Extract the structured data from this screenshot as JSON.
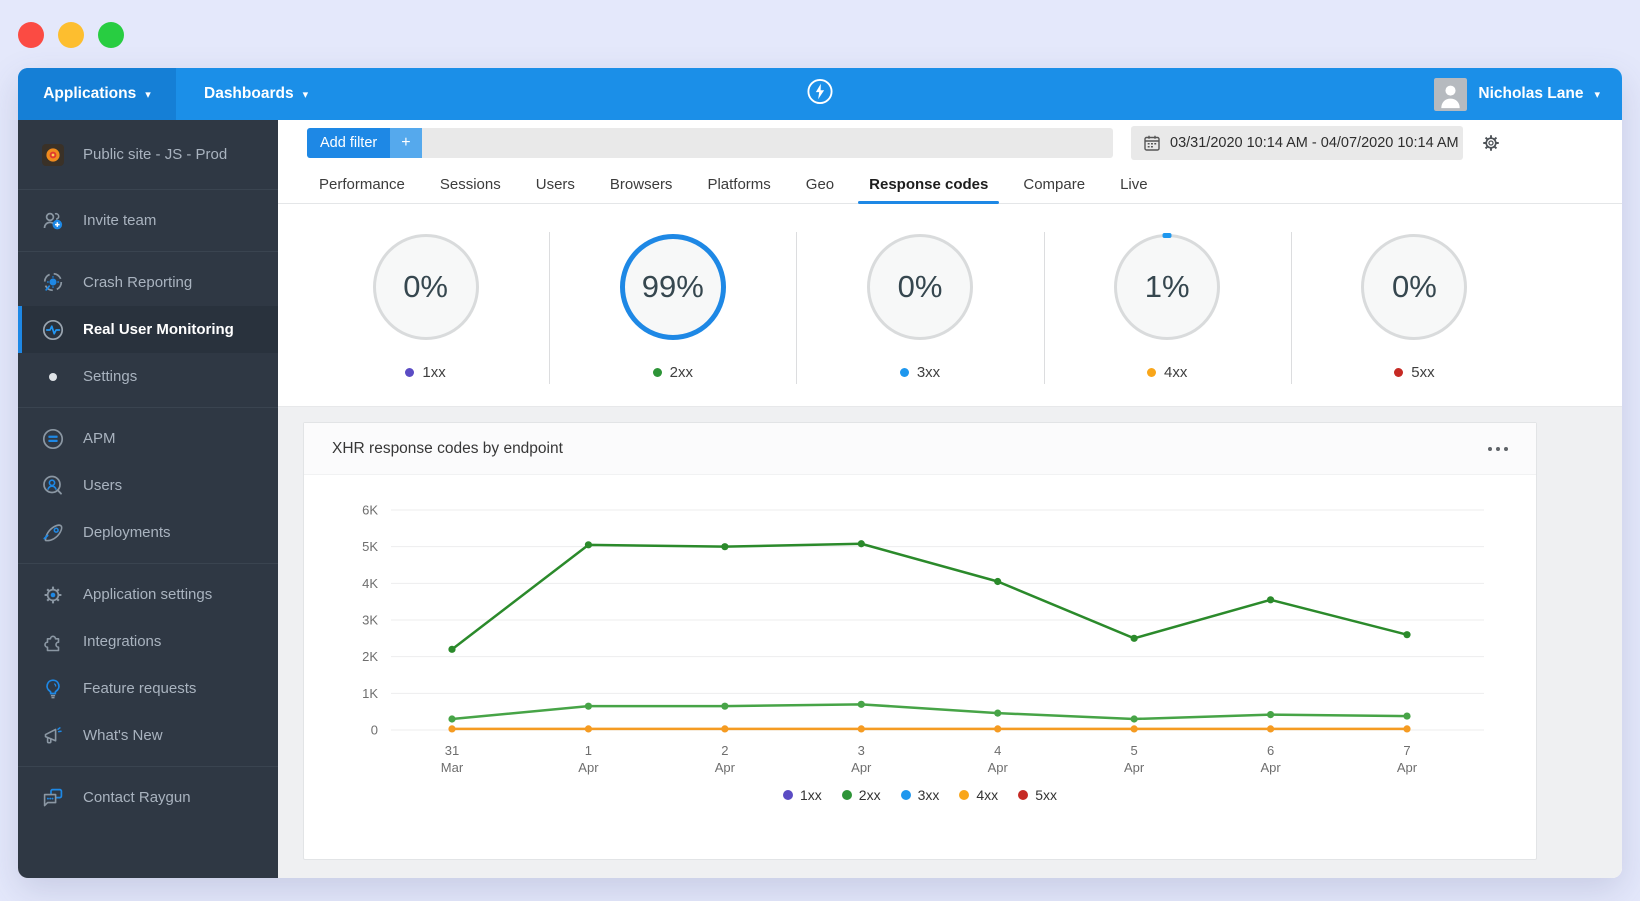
{
  "colors": {
    "accent": "#1e88e5",
    "topbar": "#1b8fe8",
    "topbar_dark": "#157fd6",
    "sidebar_bg": "#2f3844",
    "content_bg": "#eff0f2",
    "traffic_close": "#fb4b43",
    "traffic_minimize": "#fdbe2f",
    "traffic_zoom": "#28cd41"
  },
  "topbar": {
    "applications": "Applications",
    "dashboards": "Dashboards",
    "user": "Nicholas Lane"
  },
  "sidebar": {
    "app_name": "Public site - JS - Prod",
    "invite": "Invite team",
    "crash": "Crash Reporting",
    "rum": "Real User Monitoring",
    "settings": "Settings",
    "apm": "APM",
    "users": "Users",
    "deployments": "Deployments",
    "app_settings": "Application settings",
    "integrations": "Integrations",
    "feature_requests": "Feature requests",
    "whats_new": "What's New",
    "contact": "Contact Raygun"
  },
  "filterbar": {
    "add_filter": "Add filter",
    "plus": "+",
    "date_range": "03/31/2020 10:14 AM - 04/07/2020 10:14 AM"
  },
  "tabs": [
    {
      "label": "Performance",
      "active": false
    },
    {
      "label": "Sessions",
      "active": false
    },
    {
      "label": "Users",
      "active": false
    },
    {
      "label": "Browsers",
      "active": false
    },
    {
      "label": "Platforms",
      "active": false
    },
    {
      "label": "Geo",
      "active": false
    },
    {
      "label": "Response codes",
      "active": true
    },
    {
      "label": "Compare",
      "active": false
    },
    {
      "label": "Live",
      "active": false
    }
  ],
  "stats": [
    {
      "percent": "0%",
      "label": "1xx",
      "dot_color": "#5b4cc4",
      "ring": "none"
    },
    {
      "percent": "99%",
      "label": "2xx",
      "dot_color": "#2d9437",
      "ring": "full"
    },
    {
      "percent": "0%",
      "label": "3xx",
      "dot_color": "#1e97ee",
      "ring": "none"
    },
    {
      "percent": "1%",
      "label": "4xx",
      "dot_color": "#f9a61a",
      "ring": "tick"
    },
    {
      "percent": "0%",
      "label": "5xx",
      "dot_color": "#c62a24",
      "ring": "none"
    }
  ],
  "panel": {
    "title": "XHR response codes by endpoint"
  },
  "chart_data": {
    "type": "line",
    "title": "XHR response codes by endpoint",
    "x": [
      "31 Mar",
      "1 Apr",
      "2 Apr",
      "3 Apr",
      "4 Apr",
      "5 Apr",
      "6 Apr",
      "7 Apr"
    ],
    "xlabel": "",
    "ylabel": "",
    "ylim": [
      0,
      6000
    ],
    "yticks": [
      "0",
      "1K",
      "2K",
      "3K",
      "4K",
      "5K",
      "6K"
    ],
    "grid": true,
    "legend_position": "bottom",
    "series": [
      {
        "name": "2xx",
        "color": "#2b8a2b",
        "values": [
          2200,
          5050,
          5000,
          5080,
          4050,
          2500,
          3550,
          2600
        ]
      },
      {
        "name": "2xx",
        "color": "#47a447",
        "values": [
          300,
          650,
          650,
          700,
          460,
          300,
          420,
          380
        ]
      },
      {
        "name": "4xx",
        "color": "#f59b22",
        "values": [
          30,
          30,
          30,
          30,
          30,
          30,
          30,
          30
        ]
      }
    ],
    "legend": [
      {
        "label": "1xx",
        "color": "#5b4cc4"
      },
      {
        "label": "2xx",
        "color": "#2d9437"
      },
      {
        "label": "3xx",
        "color": "#1e97ee"
      },
      {
        "label": "4xx",
        "color": "#f9a61a"
      },
      {
        "label": "5xx",
        "color": "#c62a24"
      }
    ]
  }
}
